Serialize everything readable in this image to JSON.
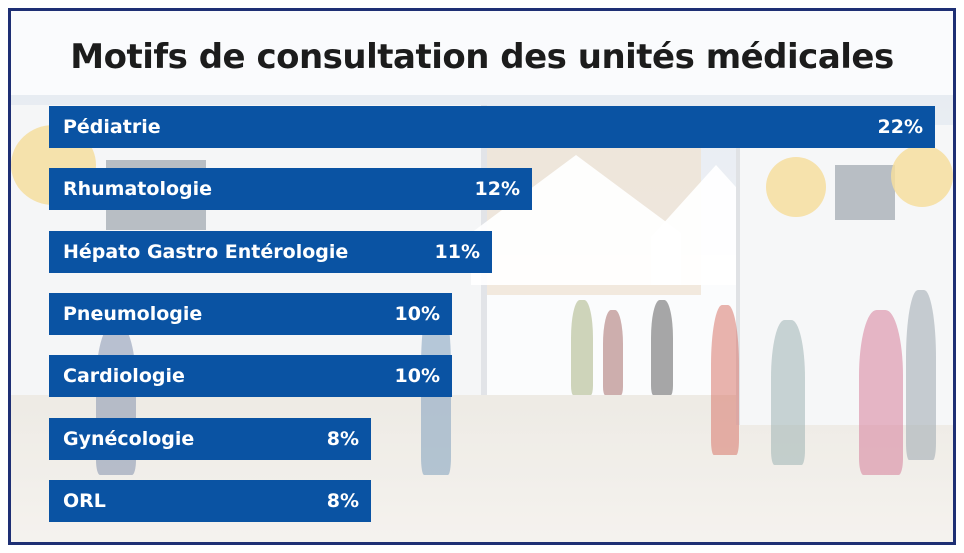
{
  "chart_data": {
    "type": "bar",
    "orientation": "horizontal",
    "title": "Motifs de consultation des unités médicales",
    "categories": [
      "Pédiatrie",
      "Rhumatologie",
      "Hépato Gastro Entérologie",
      "Pneumologie",
      "Cardiologie",
      "Gynécologie",
      "ORL"
    ],
    "values": [
      22,
      12,
      11,
      10,
      10,
      8,
      8
    ],
    "value_labels": [
      "22%",
      "12%",
      "11%",
      "10%",
      "10%",
      "8%",
      "8%"
    ],
    "unit": "%",
    "bar_color": "#0a53a3",
    "xlim": [
      0,
      22
    ],
    "grid": false,
    "legend": "none"
  },
  "colors": {
    "frame_border": "#1e2f74",
    "title_text": "#1c1c1c",
    "bar_text": "#ffffff"
  }
}
